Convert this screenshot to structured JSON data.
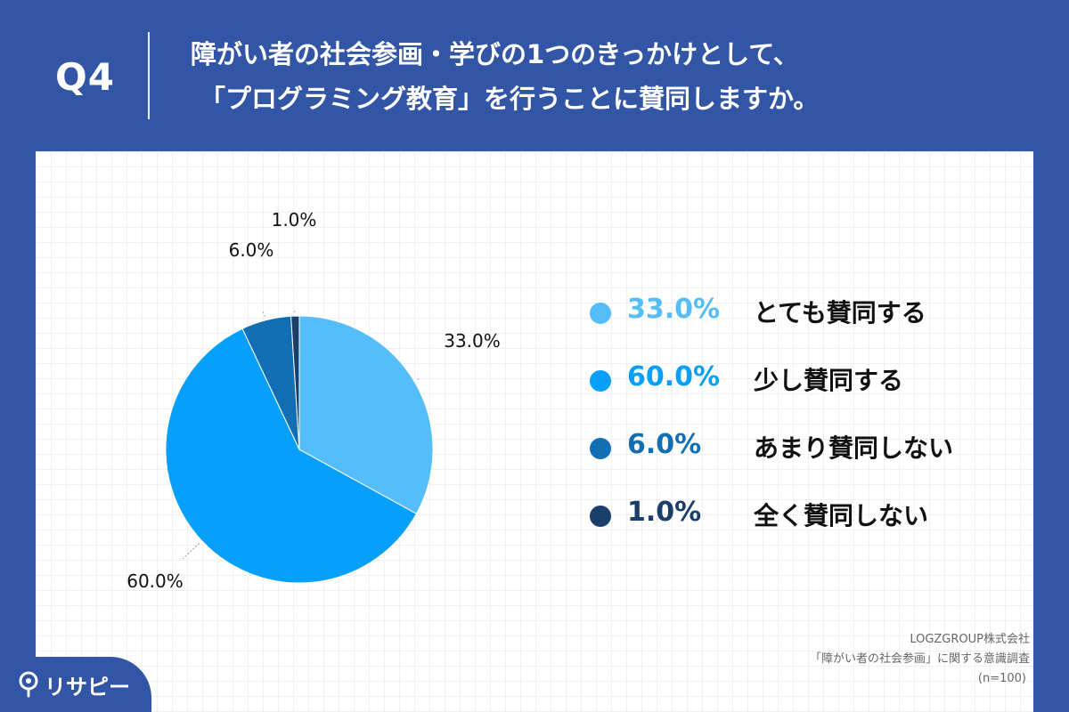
{
  "header": {
    "q_label": "Q4",
    "title_line1": "障がい者の社会参画・学びの1つのきっかけとして、",
    "title_line2": "「プログラミング教育」を行うことに賛同しますか。"
  },
  "chart_data": {
    "type": "pie",
    "slices": [
      {
        "label": "とても賛同する",
        "value": 33.0,
        "display": "33.0%",
        "color": "#56bdfb"
      },
      {
        "label": "少し賛同する",
        "value": 60.0,
        "display": "60.0%",
        "color": "#06a0fa"
      },
      {
        "label": "あまり賛同しない",
        "value": 6.0,
        "display": "6.0%",
        "color": "#136fb3"
      },
      {
        "label": "全く賛同しない",
        "value": 1.0,
        "display": "1.0%",
        "color": "#1b3f6b"
      }
    ],
    "legend_placement": "right"
  },
  "legend": [
    {
      "value": "33.0%",
      "label": "とても賛同する",
      "color": "#56bdfb"
    },
    {
      "value": "60.0%",
      "label": "少し賛同する",
      "color": "#06a0fa"
    },
    {
      "value": "6.0%",
      "label": "あまり賛同しない",
      "color": "#136fb3"
    },
    {
      "value": "1.0%",
      "label": "全く賛同しない",
      "color": "#1b3f6b"
    }
  ],
  "source": {
    "company": "LOGZGROUP株式会社",
    "survey": "「障がい者の社会参画」に関する意識調査",
    "sample": "(n=100)"
  },
  "logo": {
    "text": "リサピー",
    "icon": "location-pin-icon"
  }
}
